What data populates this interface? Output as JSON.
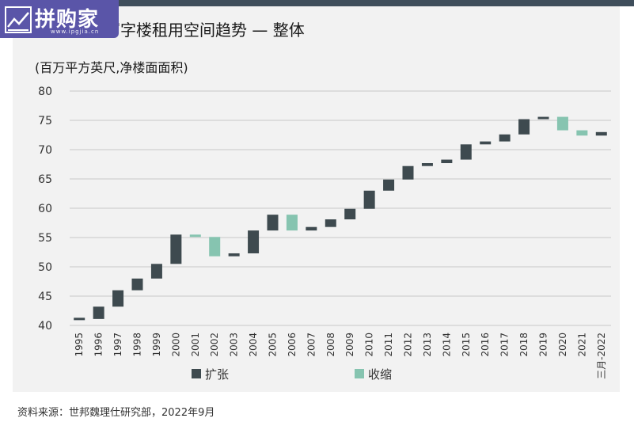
{
  "logo": {
    "text": "拼购家",
    "sub": "www.ipgjia.cn"
  },
  "chart_data": {
    "type": "bar",
    "style": "waterfall",
    "title": "甲级写字楼租用空间趋势 — 整体",
    "ylabel": "(百万平方英尺,净楼面面积)",
    "ylim": [
      40,
      80
    ],
    "yticks": [
      40,
      45,
      50,
      55,
      60,
      65,
      70,
      75,
      80
    ],
    "grid": true,
    "categories": [
      "1995",
      "1996",
      "1997",
      "1998",
      "1999",
      "2000",
      "2001",
      "2002",
      "2003",
      "2004",
      "2005",
      "2006",
      "2007",
      "2008",
      "2009",
      "2010",
      "2011",
      "2012",
      "2013",
      "2014",
      "2015",
      "2016",
      "2017",
      "2018",
      "2019",
      "2020",
      "2021",
      "三月-2022"
    ],
    "series": [
      {
        "name": "扩张",
        "color": "#3e4a4f",
        "role": "increase"
      },
      {
        "name": "收缩",
        "color": "#86c4b0",
        "role": "decrease"
      }
    ],
    "bars": [
      {
        "category": "1995",
        "start": 41.1,
        "end": 41.1
      },
      {
        "category": "1996",
        "start": 41.1,
        "end": 43.2
      },
      {
        "category": "1997",
        "start": 43.2,
        "end": 46.0
      },
      {
        "category": "1998",
        "start": 46.0,
        "end": 48.0
      },
      {
        "category": "1999",
        "start": 48.0,
        "end": 50.5
      },
      {
        "category": "2000",
        "start": 50.5,
        "end": 55.5
      },
      {
        "category": "2001",
        "start": 55.5,
        "end": 55.1
      },
      {
        "category": "2002",
        "start": 55.1,
        "end": 51.8
      },
      {
        "category": "2003",
        "start": 51.8,
        "end": 52.3
      },
      {
        "category": "2004",
        "start": 52.3,
        "end": 56.2
      },
      {
        "category": "2005",
        "start": 56.2,
        "end": 58.9
      },
      {
        "category": "2006",
        "start": 58.9,
        "end": 56.2
      },
      {
        "category": "2007",
        "start": 56.2,
        "end": 56.8
      },
      {
        "category": "2008",
        "start": 56.8,
        "end": 58.1
      },
      {
        "category": "2009",
        "start": 58.1,
        "end": 59.9
      },
      {
        "category": "2010",
        "start": 59.9,
        "end": 63.0
      },
      {
        "category": "2011",
        "start": 63.0,
        "end": 64.9
      },
      {
        "category": "2012",
        "start": 64.9,
        "end": 67.2
      },
      {
        "category": "2013",
        "start": 67.2,
        "end": 67.7
      },
      {
        "category": "2014",
        "start": 67.7,
        "end": 68.3
      },
      {
        "category": "2015",
        "start": 68.3,
        "end": 70.9
      },
      {
        "category": "2016",
        "start": 70.9,
        "end": 71.4
      },
      {
        "category": "2017",
        "start": 71.4,
        "end": 72.6
      },
      {
        "category": "2018",
        "start": 72.6,
        "end": 75.2
      },
      {
        "category": "2019",
        "start": 75.2,
        "end": 75.6
      },
      {
        "category": "2020",
        "start": 75.6,
        "end": 73.3
      },
      {
        "category": "2021",
        "start": 73.3,
        "end": 72.4
      },
      {
        "category": "三月-2022",
        "start": 72.4,
        "end": 73.0
      }
    ]
  },
  "source": "资料来源：世邦魏理仕研究部，2022年9月"
}
